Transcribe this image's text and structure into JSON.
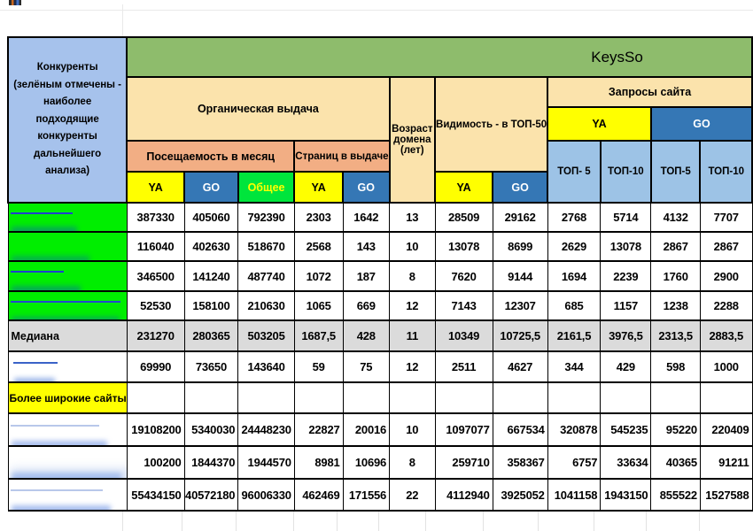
{
  "sheet": {
    "title_band": "KeysSo",
    "competitors_header": "Конкуренты (зелёным отмечены - наиболее подходящие конкуренты дальнейшего анализа)",
    "groups": {
      "organic": "Органическая выдача",
      "visits": "Посещаемость в месяц",
      "pages": "Страниц в выдаче",
      "age": "Возраст домена (лет)",
      "visibility": "Видимость - в ТОП-50",
      "queries": "Запросы сайта"
    },
    "engines": {
      "ya": "YA",
      "go": "GO",
      "total": "Общее"
    },
    "top_labels": [
      "ТОП- 5",
      "ТОП-10",
      "ТОП-5",
      "ТОП-10"
    ],
    "rows": [
      {
        "style": "green",
        "label": "",
        "blurred": true,
        "values": [
          "387330",
          "405060",
          "792390",
          "2303",
          "1642",
          "13",
          "28509",
          "29162",
          "2768",
          "5714",
          "4132",
          "7707"
        ]
      },
      {
        "style": "green",
        "label": "",
        "blurred": true,
        "values": [
          "116040",
          "402630",
          "518670",
          "2568",
          "143",
          "10",
          "13078",
          "8699",
          "2629",
          "13078",
          "2867",
          "2867"
        ]
      },
      {
        "style": "green",
        "label": "",
        "blurred": true,
        "values": [
          "346500",
          "141240",
          "487740",
          "1072",
          "187",
          "8",
          "7620",
          "9144",
          "1694",
          "2239",
          "1760",
          "2900"
        ]
      },
      {
        "style": "green",
        "label": "",
        "blurred": true,
        "values": [
          "52530",
          "158100",
          "210630",
          "1065",
          "669",
          "12",
          "7143",
          "12307",
          "685",
          "1157",
          "1238",
          "2288"
        ]
      },
      {
        "style": "median",
        "label": "Медиана",
        "blurred": false,
        "values": [
          "231270",
          "280365",
          "503205",
          "1687,5",
          "428",
          "11",
          "10349",
          "10725,5",
          "2161,5",
          "3976,5",
          "2313,5",
          "2883,5"
        ]
      },
      {
        "style": "bold",
        "label": "",
        "blurred": true,
        "values": [
          "69990",
          "73650",
          "143640",
          "59",
          "75",
          "12",
          "2511",
          "4627",
          "344",
          "429",
          "598",
          "1000"
        ]
      },
      {
        "style": "section",
        "label": "Более широкие сайты",
        "blurred": false,
        "values": [
          "",
          "",
          "",
          "",
          "",
          "",
          "",
          "",
          "",
          "",
          "",
          ""
        ]
      },
      {
        "style": "wide",
        "label": "",
        "blurred": true,
        "values": [
          "19108200",
          "5340030",
          "24448230",
          "22827",
          "20016",
          "10",
          "1097077",
          "667534",
          "320878",
          "545235",
          "95220",
          "220409"
        ]
      },
      {
        "style": "wide",
        "label": "",
        "blurred": true,
        "values": [
          "100200",
          "1844370",
          "1944570",
          "8981",
          "10696",
          "8",
          "259710",
          "358367",
          "6757",
          "33634",
          "40365",
          "91211"
        ]
      },
      {
        "style": "wide",
        "label": "",
        "blurred": true,
        "values": [
          "55434150",
          "40572180",
          "96006330",
          "462469",
          "171556",
          "22",
          "4112940",
          "3925052",
          "1041158",
          "1943150",
          "855522",
          "1527588"
        ]
      }
    ],
    "colors": {
      "band_green": "#8EBC6C",
      "tan": "#FBE3AC",
      "salmon": "#F2AE84",
      "yellow": "#FFFF00",
      "engine_blue": "#3577B5",
      "bright_green": "#00E53C",
      "light_blue": "#9DC3E6",
      "panel_blue": "#A6C2EC",
      "row_highlight_green": "#00EE00",
      "median_gray": "#DBDBDB",
      "link_blue": "#2548D0"
    }
  }
}
